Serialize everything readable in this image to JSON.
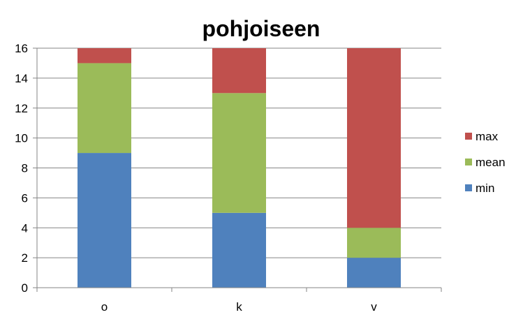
{
  "chart_data": {
    "type": "bar",
    "stacked": true,
    "title": "pohjoiseen",
    "xlabel": "",
    "ylabel": "",
    "categories": [
      "o",
      "k",
      "v"
    ],
    "series": [
      {
        "name": "min",
        "color": "#4f81bd",
        "values": [
          9,
          5,
          2
        ]
      },
      {
        "name": "mean",
        "color": "#9bbb59",
        "values": [
          6,
          8,
          2
        ]
      },
      {
        "name": "max",
        "color": "#c0504d",
        "values": [
          1,
          3,
          12
        ]
      }
    ],
    "ylim": [
      0,
      16
    ],
    "yticks": [
      0,
      2,
      4,
      6,
      8,
      10,
      12,
      14,
      16
    ],
    "grid": true,
    "legend_position": "right"
  }
}
